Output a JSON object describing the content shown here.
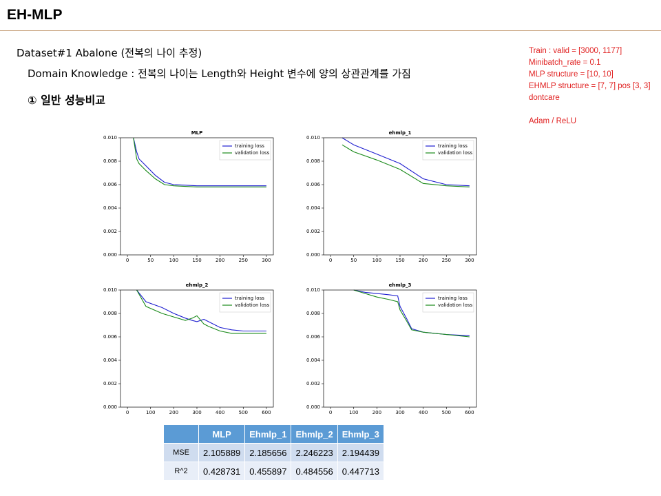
{
  "header": {
    "title": "EH-MLP"
  },
  "body": {
    "lines": [
      "Dataset#1 Abalone (전복의 나이 추정)",
      "Domain Knowledge : 전복의 나이는 Length와 Height 변수에 양의 상관관계를 가짐",
      "① 일반 성능비교"
    ]
  },
  "notes": {
    "lines": [
      "Train : valid = [3000, 1177]",
      "Minibatch_rate = 0.1",
      "MLP structure = [10, 10]",
      "EHMLP structure = [7, 7] pos [3, 3] dontcare",
      "Adam / ReLU"
    ]
  },
  "chart_data": [
    {
      "type": "line",
      "title": "MLP",
      "x": [
        13,
        20,
        25,
        40,
        60,
        80,
        100,
        150,
        200,
        250,
        300
      ],
      "series": [
        {
          "name": "training loss",
          "color": "#1f1fd0",
          "values": [
            0.01,
            0.0088,
            0.0082,
            0.0076,
            0.0068,
            0.0062,
            0.006,
            0.0059,
            0.0059,
            0.0059,
            0.0059
          ]
        },
        {
          "name": "validation loss",
          "color": "#1a8a1a",
          "values": [
            0.01,
            0.0082,
            0.0078,
            0.0072,
            0.0065,
            0.006,
            0.0059,
            0.0058,
            0.0058,
            0.0058,
            0.0058
          ]
        }
      ],
      "xlim": [
        -15,
        315
      ],
      "xticks": [
        0,
        50,
        100,
        150,
        200,
        250,
        300
      ],
      "ylim": [
        0,
        0.01
      ],
      "yticks": [
        {
          "value": 0,
          "label": "0.000"
        },
        {
          "value": 0.002,
          "label": "0.002"
        },
        {
          "value": 0.004,
          "label": "0.004"
        },
        {
          "value": 0.006,
          "label": "0.006"
        },
        {
          "value": 0.008,
          "label": "0.008"
        },
        {
          "value": 0.01,
          "label": "0.010"
        }
      ],
      "legend": "upper right"
    },
    {
      "type": "line",
      "title": "ehmlp_1",
      "x": [
        25,
        50,
        100,
        150,
        200,
        250,
        300
      ],
      "series": [
        {
          "name": "training loss",
          "color": "#1f1fd0",
          "values": [
            0.01,
            0.0094,
            0.0086,
            0.0078,
            0.0065,
            0.006,
            0.0059
          ]
        },
        {
          "name": "validation loss",
          "color": "#1a8a1a",
          "values": [
            0.0094,
            0.0088,
            0.0081,
            0.0073,
            0.0061,
            0.0059,
            0.0058
          ]
        }
      ],
      "xlim": [
        -15,
        315
      ],
      "xticks": [
        0,
        50,
        100,
        150,
        200,
        250,
        300
      ],
      "ylim": [
        0,
        0.01
      ],
      "yticks": [
        {
          "value": 0,
          "label": "0.000"
        },
        {
          "value": 0.002,
          "label": "0.002"
        },
        {
          "value": 0.004,
          "label": "0.004"
        },
        {
          "value": 0.006,
          "label": "0.006"
        },
        {
          "value": 0.008,
          "label": "0.008"
        },
        {
          "value": 0.01,
          "label": "0.010"
        }
      ],
      "legend": "upper right"
    },
    {
      "type": "line",
      "title": "ehmlp_2",
      "x": [
        40,
        80,
        150,
        200,
        250,
        280,
        300,
        330,
        350,
        400,
        450,
        500,
        600
      ],
      "series": [
        {
          "name": "training loss",
          "color": "#1f1fd0",
          "values": [
            0.01,
            0.009,
            0.0085,
            0.008,
            0.0076,
            0.0074,
            0.0073,
            0.0075,
            0.0073,
            0.0068,
            0.0066,
            0.0065,
            0.0065
          ]
        },
        {
          "name": "validation loss",
          "color": "#1a8a1a",
          "values": [
            0.01,
            0.0086,
            0.008,
            0.0077,
            0.0074,
            0.0076,
            0.0078,
            0.0071,
            0.0069,
            0.0065,
            0.0063,
            0.0063,
            0.0063
          ]
        }
      ],
      "xlim": [
        -30,
        630
      ],
      "xticks": [
        0,
        100,
        200,
        300,
        400,
        500,
        600
      ],
      "ylim": [
        0,
        0.01
      ],
      "yticks": [
        {
          "value": 0,
          "label": "0.000"
        },
        {
          "value": 0.002,
          "label": "0.002"
        },
        {
          "value": 0.004,
          "label": "0.004"
        },
        {
          "value": 0.006,
          "label": "0.006"
        },
        {
          "value": 0.008,
          "label": "0.008"
        },
        {
          "value": 0.01,
          "label": "0.010"
        }
      ],
      "legend": "upper right"
    },
    {
      "type": "line",
      "title": "ehmlp_3",
      "x": [
        100,
        150,
        200,
        250,
        290,
        300,
        330,
        350,
        400,
        450,
        500,
        600
      ],
      "series": [
        {
          "name": "training loss",
          "color": "#1f1fd0",
          "values": [
            0.01,
            0.0098,
            0.0097,
            0.0096,
            0.0095,
            0.0086,
            0.0075,
            0.0067,
            0.0064,
            0.0063,
            0.0062,
            0.0061
          ]
        },
        {
          "name": "validation loss",
          "color": "#1a8a1a",
          "values": [
            0.01,
            0.0097,
            0.0094,
            0.0092,
            0.009,
            0.0083,
            0.0073,
            0.0066,
            0.0064,
            0.0063,
            0.0062,
            0.006
          ]
        }
      ],
      "xlim": [
        -30,
        630
      ],
      "xticks": [
        0,
        100,
        200,
        300,
        400,
        500,
        600
      ],
      "ylim": [
        0,
        0.01
      ],
      "yticks": [
        {
          "value": 0,
          "label": "0.000"
        },
        {
          "value": 0.002,
          "label": "0.002"
        },
        {
          "value": 0.004,
          "label": "0.004"
        },
        {
          "value": 0.006,
          "label": "0.006"
        },
        {
          "value": 0.008,
          "label": "0.008"
        },
        {
          "value": 0.01,
          "label": "0.010"
        }
      ],
      "legend": "upper right"
    }
  ],
  "table": {
    "columns": [
      "MLP",
      "Ehmlp_1",
      "Ehmlp_2",
      "Ehmlp_3"
    ],
    "rows": [
      {
        "label": "MSE",
        "values": [
          2.105889,
          2.185656,
          2.246223,
          2.194439
        ]
      },
      {
        "label": "R^2",
        "values": [
          0.428731,
          0.455897,
          0.484556,
          0.447713
        ]
      }
    ]
  }
}
